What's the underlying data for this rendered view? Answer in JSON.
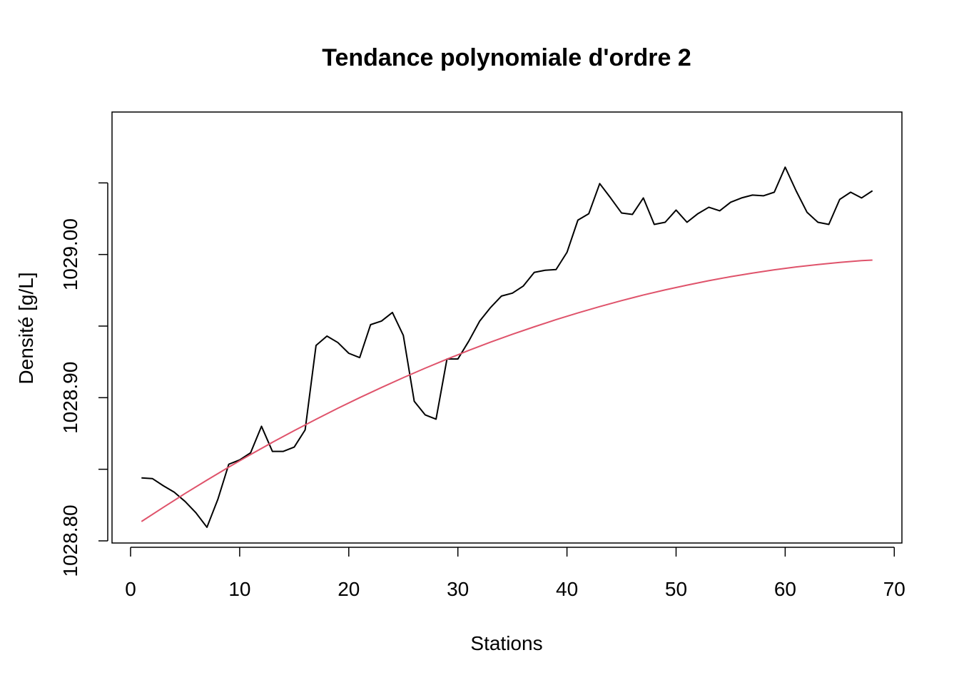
{
  "chart_data": {
    "type": "line",
    "title": "Tendance polynomiale d'ordre 2",
    "xlabel": "Stations",
    "ylabel": "Densité [g/L]",
    "xlim": [
      -1.7,
      70.7
    ],
    "ylim": [
      1028.7985,
      1029.0995
    ],
    "xticks": [
      0,
      10,
      20,
      30,
      40,
      50,
      60,
      70
    ],
    "xtick_labels": [
      "0",
      "10",
      "20",
      "30",
      "40",
      "50",
      "60",
      "70"
    ],
    "yticks": [
      1028.8,
      1028.85,
      1028.9,
      1028.95,
      1029.0,
      1029.05
    ],
    "ytick_labels": [
      "1028.80",
      "",
      "1028.90",
      "",
      "1029.00",
      ""
    ],
    "grid": false,
    "series": [
      {
        "color": "#000000",
        "x": [
          1,
          2,
          3,
          4,
          5,
          6,
          7,
          8,
          9,
          10,
          11,
          12,
          13,
          14,
          15,
          16,
          17,
          18,
          19,
          20,
          21,
          22,
          23,
          24,
          25,
          26,
          27,
          28,
          29,
          30,
          31,
          32,
          33,
          34,
          35,
          36,
          37,
          38,
          39,
          40,
          41,
          42,
          43,
          44,
          45,
          46,
          47,
          48,
          49,
          50,
          51,
          52,
          53,
          54,
          55,
          56,
          57,
          58,
          59,
          60,
          61,
          62,
          63,
          64,
          65,
          66,
          67,
          68
        ],
        "values": [
          1028.844,
          1028.8435,
          1028.8385,
          1028.834,
          1028.8275,
          1028.8195,
          1028.8095,
          1028.829,
          1028.8535,
          1028.8565,
          1028.8615,
          1028.88,
          1028.8625,
          1028.8625,
          1028.8655,
          1028.8775,
          1028.9365,
          1028.943,
          1028.9385,
          1028.931,
          1028.928,
          1028.951,
          1028.9535,
          1028.9595,
          1028.9435,
          1028.8975,
          1028.888,
          1028.885,
          1028.927,
          1028.927,
          1028.9395,
          1028.9535,
          1028.963,
          1028.971,
          1028.973,
          1028.978,
          1028.9875,
          1028.989,
          1028.9895,
          1029.0015,
          1029.024,
          1029.0285,
          1029.0495,
          1029.0395,
          1029.029,
          1029.028,
          1029.0395,
          1029.021,
          1029.0225,
          1029.031,
          1029.0225,
          1029.0285,
          1029.033,
          1029.0305,
          1029.0365,
          1029.0395,
          1029.0415,
          1029.041,
          1029.0435,
          1029.061,
          1029.0445,
          1029.0295,
          1029.0225,
          1029.021,
          1029.0385,
          1029.0435,
          1029.0395,
          1029.0445
        ]
      },
      {
        "color": "#DF536B",
        "x": [
          1,
          3,
          5,
          7,
          9,
          11,
          13,
          15,
          17,
          19,
          21,
          23,
          25,
          27,
          29,
          31,
          33,
          35,
          37,
          39,
          41,
          43,
          45,
          47,
          49,
          51,
          53,
          55,
          57,
          59,
          61,
          63,
          65,
          67,
          68
        ],
        "values": [
          1028.8135,
          1028.8234,
          1028.8331,
          1028.8424,
          1028.8515,
          1028.8603,
          1028.8688,
          1028.877,
          1028.8849,
          1028.8926,
          1028.9,
          1028.9071,
          1028.914,
          1028.9206,
          1028.9269,
          1028.933,
          1028.9388,
          1028.9443,
          1028.9495,
          1028.9545,
          1028.9592,
          1028.9636,
          1028.9678,
          1028.9717,
          1028.9753,
          1028.9786,
          1028.9817,
          1028.9845,
          1028.987,
          1028.9893,
          1028.9913,
          1028.993,
          1028.9945,
          1028.9957,
          1028.9961
        ]
      }
    ]
  }
}
